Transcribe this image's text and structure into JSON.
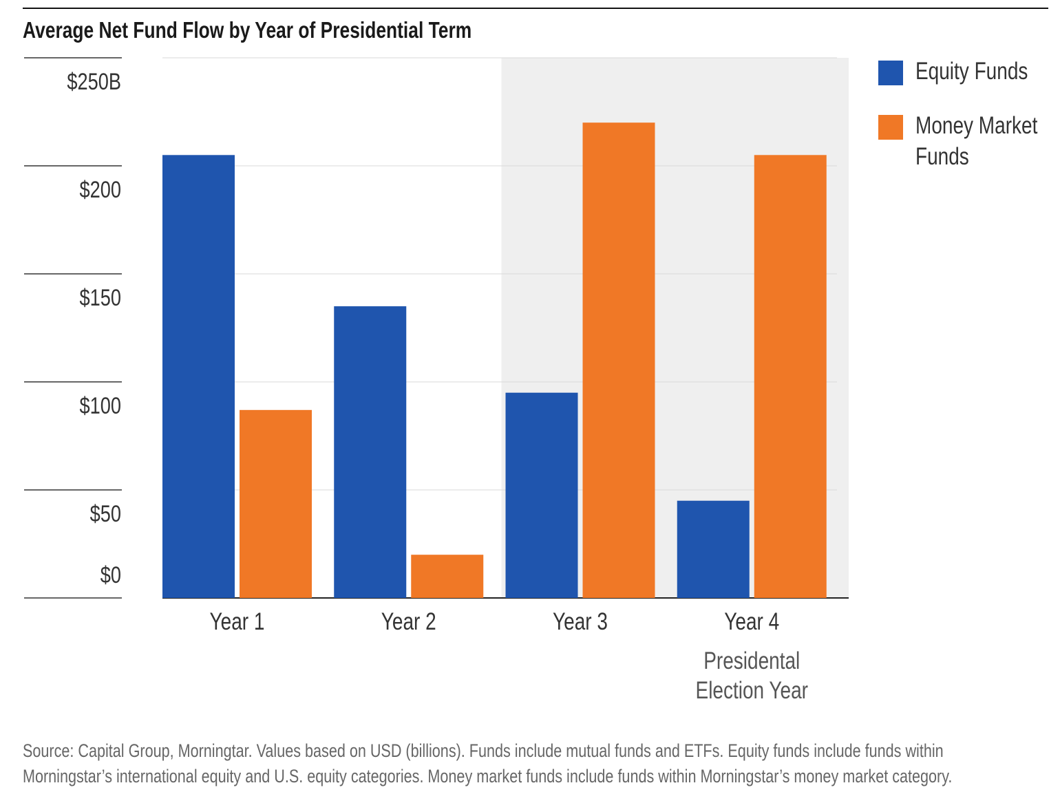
{
  "chart_data": {
    "type": "bar",
    "title": "Average Net Fund Flow by Year of Presidential Term",
    "categories": [
      "Year 1",
      "Year 2",
      "Year 3",
      "Year 4"
    ],
    "category_sublabel": [
      "Presidental",
      "Election Year"
    ],
    "highlighted_categories": [
      "Year 3",
      "Year 4"
    ],
    "highlight_color": "#efefef",
    "series": [
      {
        "name": "Equity Funds",
        "color": "#1f55ae",
        "values": [
          205,
          135,
          95,
          45
        ]
      },
      {
        "name": "Money Market Funds",
        "color": "#f07826",
        "values": [
          87,
          20,
          220,
          205
        ]
      }
    ],
    "legend_lines": [
      [
        "Equity Funds"
      ],
      [
        "Money Market",
        "Funds"
      ]
    ],
    "legend_placement": "right",
    "yticks": [
      0,
      50,
      100,
      150,
      200,
      250
    ],
    "ytick_labels": [
      "$0",
      "$50",
      "$100",
      "$150",
      "$200",
      "$250B"
    ],
    "ylim": [
      0,
      250
    ],
    "grid": true,
    "xlabel": "",
    "ylabel": "",
    "footnote": [
      "Source: Capital Group, Morningtar. Values based on USD (billions). Funds include mutual funds and ETFs. Equity funds include funds within",
      "Morningstar’s international equity and U.S. equity categories. Money market funds include funds within Morningstar’s money market category."
    ]
  }
}
